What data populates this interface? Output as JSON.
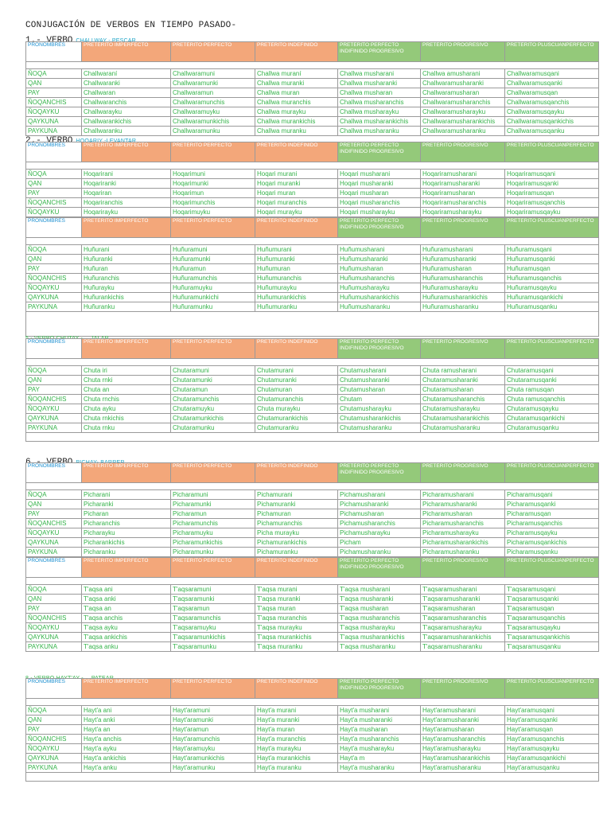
{
  "title": "CONJUGACIÓN DE VERBOS EN TIEMPO PASADO-",
  "headers": [
    "PRONOMBRES",
    "PRETÉRITO IMPERFECTO",
    "PRETÉRITO PERFECTO",
    "PRETÉRITO INDEFINIDO",
    "PRETÉRITO PERFECTO INDIFINIDO PROGRESIVO",
    "PRETÉRITO PROGRESIVO",
    "PRETÉRITO PLUSCUANPERFECTO"
  ],
  "header_colors": {
    "orange": "#f3a77a",
    "green": "#94c97a",
    "pron": "#1b8fd0",
    "text": "#35b34a",
    "gloss": "#1ba3c6"
  },
  "sections": [
    {
      "num": "1.- VERBO",
      "gloss": "CHALLWAY - PESCAR",
      "rows": [
        [
          "ÑOQA",
          "Challwaraní",
          "Challwaramuni",
          "Challwa muraní",
          "Challwa musharani",
          "Challwa amusharani",
          "Challwaramusqani"
        ],
        [
          "QAN",
          "Challwaranki",
          "Challwaramunki",
          "Challwa muranki",
          "Challwa musharanki",
          "Challwaramusharanki",
          "Challwaramusqanki"
        ],
        [
          "PAY",
          "Challwaran",
          "Challwaramun",
          "Challwa muran",
          "Challwa musharan",
          "Challwaramusharan",
          "Challwaramusqan"
        ],
        [
          "ÑOQANCHIS",
          "Challwaranchis",
          "Challwaramunchis",
          "Challwa muranchis",
          "Challwa musharanchis",
          "Challwaramusharanchis",
          "Challwaramusqanchis"
        ],
        [
          "ÑOQAYKU",
          "Challwarayku",
          "Challwaramuyku",
          "Challwa murayku",
          "Challwa musharayku",
          "Challwaramusharayku",
          "Challwaramusqayku"
        ],
        [
          "QAYKUNA",
          "Challwarankichis",
          "Challwaramunkichis",
          "Challwa murankichis",
          "Challwa musharankichis",
          "Challwaramusharankichis",
          "Challwaramusqankichis"
        ],
        [
          "PAYKUNA",
          "Challwaranku",
          "Challwaramunku",
          "Challwa muranku",
          "Challwa musharanku",
          "Challwaramusharanku",
          "Challwaramusqanku"
        ]
      ]
    },
    {
      "num": "2.- VERBO",
      "gloss": "HOQARIY -LEVANTAR",
      "rows": [
        [
          "ÑOQA",
          "Hoqarirani",
          "Hoqarimuni",
          "Hoqari murani",
          "Hoqari musharani",
          "Hoqariramusharani",
          "Hoqariramusqani"
        ],
        [
          "QAN",
          "Hoqariranki",
          "Hoqarimunki",
          "Hoqari muranki",
          "Hoqari musharanki",
          "Hoqariramusharanki",
          "Hoqariramusqanki"
        ],
        [
          "PAY",
          "Hoqariran",
          "Hoqarimun",
          "Hoqari muran",
          "Hoqari musharan",
          "Hoqariramusharan",
          "Hoqariramusqan"
        ],
        [
          "ÑOQANCHIS",
          "Hoqariranchis",
          "Hoqarimunchis",
          "Hoqari muranchis",
          "Hoqari musharanchis",
          "Hoqariramusharanchis",
          "Hoqariramusqanchis"
        ],
        [
          "ÑOQAYKU",
          "Hoqarirayku",
          "Hoqarimuyku",
          "Hoqari murayku",
          "Hoqari musharayku",
          "Hoqariramusharayku",
          "Hoqariramusqayku"
        ]
      ]
    },
    {
      "num": "",
      "gloss": "",
      "rows": [
        [
          "ÑOQA",
          "Huñurani",
          "Huñuramuni",
          "Huñumurani",
          "Huñumusharani",
          "Huñuramusharani",
          "Huñuramusqani"
        ],
        [
          "QAN",
          "Huñuranki",
          "Huñuramunki",
          "Huñumuranki",
          "Huñumusharanki",
          "Huñuramusharanki",
          "Huñuramusqanki"
        ],
        [
          "PAY",
          "Huñuran",
          "Huñuramun",
          "Huñumuran",
          "Huñumusharan",
          "Huñuramusharan",
          "Huñuramusqan"
        ],
        [
          "ÑOQANCHIS",
          "Huñuranchis",
          "Huñuramunchis",
          "Huñumuranchis",
          "Huñumusharanchis",
          "Huñuramusharanchis",
          "Huñuramusqanchis"
        ],
        [
          "ÑOQAYKU",
          "Huñurayku",
          "Huñuramuyku",
          "Huñumurayku",
          "Huñumusharayku",
          "Huñuramusharayku",
          "Huñuramusqayku"
        ],
        [
          "QAYKUNA",
          "Huñurankichis",
          "Huñuramunkichi",
          "Huñumurankichis",
          "Huñumusharankichis",
          "Huñuramusharankichis",
          "Huñuramusqankichi"
        ],
        [
          "PAYKUNA",
          "Huñuranku",
          "Huñuramunku",
          "Huñumuranku",
          "Huñumusharanku",
          "Huñuramusharanku",
          "Huñuramusqanku"
        ]
      ]
    },
    {
      "num": "5.- VERBO CHUTAY -",
      "gloss": "JALAR",
      "rows": [
        [
          "ÑOQA",
          "Chuta iri",
          "Chutaramuni",
          "Chutamurani",
          "Chutamusharani",
          "Chuta ramusharani",
          "Chutaramusqani"
        ],
        [
          "QAN",
          "Chuta rnki",
          "Chutaramunki",
          "Chutamuranki",
          "Chutamusharanki",
          "Chutaramusharanki",
          "Chutaramusqanki"
        ],
        [
          "PAY",
          "Chuta an",
          "Chutaramun",
          "Chutamuran",
          "Chutamusharan",
          "Chutaramusharan",
          "Chuta ramusqan"
        ],
        [
          "ÑOQANCHIS",
          "Chuta rnchis",
          "Chutaramunchis",
          "Chutamuranchis",
          "Chutam",
          "Chutaramusharanchis",
          "Chuta ramusqanchis"
        ],
        [
          "ÑOQAYKU",
          "Chuta ayku",
          "Chutaramuyku",
          "Chuta murayku",
          "Chutamusharayku",
          "Chutaramusharayku",
          "Chutaramusqayku"
        ],
        [
          "QAYKUNA",
          "Chuta rnkichis",
          "Chutaramunkichis",
          "Chutamurankichis",
          "Chutamusharankichis",
          "Chutaramusharankichis",
          "Chutaramusqankichi"
        ],
        [
          "PAYKUNA",
          "Chuta rnku",
          "Chutaramunku",
          "Chutamuranku",
          "Chutamusharanku",
          "Chutaramusharanku",
          "Chutaramusqanku"
        ]
      ]
    },
    {
      "num": "6.- VERBO",
      "gloss": "PICHAY- BARRER",
      "rows": [
        [
          "ÑOQA",
          "Picharani",
          "Picharamuni",
          "Pichamurani",
          "Pichamusharani",
          "Picharamusharani",
          "Picharamusqani"
        ],
        [
          "QAN",
          "Picharanki",
          "Picharamunki",
          "Pichamuranki",
          "Pichamusharanki",
          "Picharamusharanki",
          "Picharamusqanki"
        ],
        [
          "PAY",
          "Picharan",
          "Picharamun",
          "Pichamuran",
          "Pichamusharan",
          "Picharamusharan",
          "Picharamusqan"
        ],
        [
          "ÑOQANCHIS",
          "Picharanchis",
          "Picharamunchis",
          "Pichamuranchis",
          "Pichamusharanchis",
          "Picharamusharanchis",
          "Picharamusqanchis"
        ],
        [
          "ÑOQAYKU",
          "Picharayku",
          "Picharamuyku",
          "Picha murayku",
          "Pichamusharayku",
          "Picharamusharayku",
          "Picharamusqayku"
        ],
        [
          "QAYKUNA",
          "Picharankichis",
          "Picharamunkichis",
          "Pichamurankichis",
          "Picham",
          "Picharamusharankichis",
          "Picharamusqankichis"
        ],
        [
          "PAYKUNA",
          "Picharanku",
          "Picharamunku",
          "Pichamuranku",
          "Pichamusharanku",
          "Picharamusharanku",
          "Picharamusqanku"
        ]
      ]
    },
    {
      "num": "",
      "gloss": "",
      "rows": [
        [
          "ÑOQA",
          "T'aqsa ani",
          "T'aqsaramuni",
          "T'aqsa murani",
          "T'aqsa musharani",
          "T'aqsaramusharani",
          "T'aqsaramusqani"
        ],
        [
          "QAN",
          "T'aqsa anki",
          "T'aqsaramunki",
          "T'aqsa muranki",
          "T'aqsa musharanki",
          "T'aqsaramusharanki",
          "T'aqsaramusqanki"
        ],
        [
          "PAY",
          "T'aqsa an",
          "T'aqsaramun",
          "T'aqsa muran",
          "T'aqsa musharan",
          "T'aqsaramusharan",
          "T'aqsaramusqan"
        ],
        [
          "ÑOQANCHIS",
          "T'aqsa anchis",
          "T'aqsaramunchis",
          "T'aqsa muranchis",
          "T'aqsa musharanchis",
          "T'aqsaramusharanchis",
          "T'aqsaramusqanchis"
        ],
        [
          "ÑOQAYKU",
          "T'aqsa ayku",
          "T'aqsaramuyku",
          "T'aqsa murayku",
          "T'aqsa musharayku",
          "T'aqsaramusharayku",
          "T'aqsaramusqayku"
        ],
        [
          "QAYKUNA",
          "T'aqsa ankichis",
          "T'aqsaramunkichis",
          "T'aqsa murankichis",
          "T'aqsa musharankichis",
          "T'aqsaramusharankichis",
          "T'aqsaramusqankichis"
        ],
        [
          "PAYKUNA",
          "T'aqsa anku",
          "T'aqsaramunku",
          "T'aqsa muranku",
          "T'aqsa musharanku",
          "T'aqsaramusharanku",
          "T'aqsaramusqanku"
        ]
      ]
    },
    {
      "num": "8.- VERBO HAYT'AY -",
      "gloss": "PATEAR",
      "rows": [
        [
          "ÑOQA",
          "Hayt'a ani",
          "Hayt'aramuni",
          "Hayt'a murani",
          "Hayt'a musharani",
          "Hayt'aramusharani",
          "Hayt'aramusqani"
        ],
        [
          "QAN",
          "Hayt'a anki",
          "Hayt'aramunki",
          "Hayt'a muranki",
          "Hayt'a musharanki",
          "Hayt'aramusharanki",
          "Hayt'aramusqanki"
        ],
        [
          "PAY",
          "Hayt'a an",
          "Hayt'aramun",
          "Hayt'a muran",
          "Hayt'a musharan",
          "Hayt'aramusharan",
          "Hayt'aramusqan"
        ],
        [
          "ÑOQANCHIS",
          "Hayt'a anchis",
          "Hayt'aramunchis",
          "Hayt'a muranchis",
          "Hayt'a musharanchis",
          "Hayt'aramusharanchis",
          "Hayt'aramusqanchis"
        ],
        [
          "ÑOQAYKU",
          "Hayt'a ayku",
          "Hayt'aramuyku",
          "Hayt'a murayku",
          "Hayt'a musharayku",
          "Hayt'aramusharayku",
          "Hayt'aramusqayku"
        ],
        [
          "QAYKUNA",
          "Hayt'a ankichis",
          "Hayt'aramunkichis",
          "Hayt'a murankichis",
          "Hayt'a m",
          "Hayt'aramusharankichis",
          "Hayt'aramusqankichi"
        ],
        [
          "PAYKUNA",
          "Hayt'a anku",
          "Hayt'aramunku",
          "Hayt'a muranku",
          "Hayt'a musharanku",
          "Hayt'aramusharanku",
          "Hayt'aramusqanku"
        ]
      ]
    }
  ]
}
